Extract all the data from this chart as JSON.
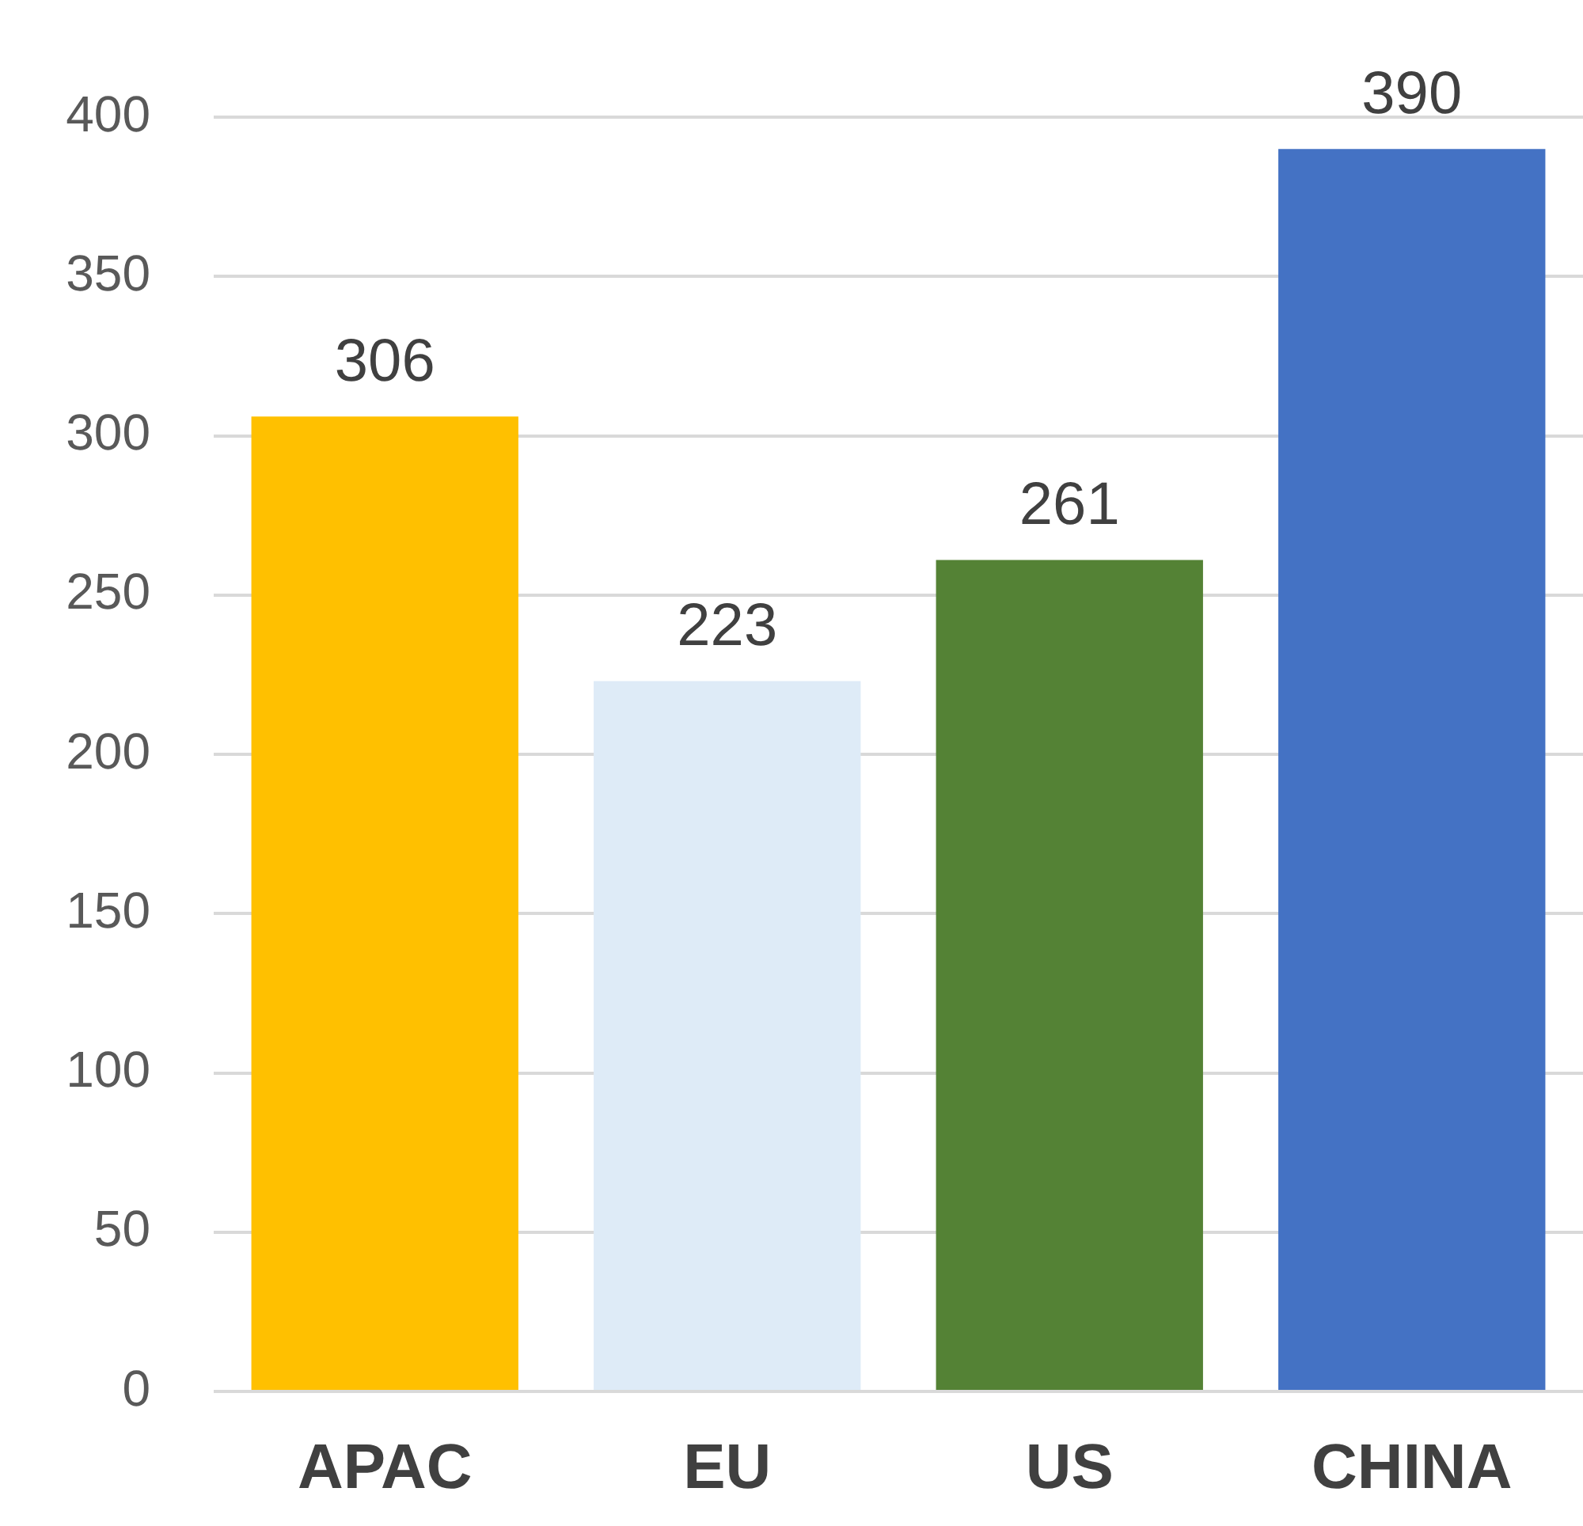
{
  "chart_data": {
    "type": "bar",
    "categories": [
      "APAC",
      "EU",
      "US",
      "CHINA"
    ],
    "values": [
      306,
      223,
      261,
      390
    ],
    "colors": [
      "#ffc000",
      "#deebf7",
      "#548235",
      "#4472c4"
    ],
    "ylim": [
      0,
      400
    ],
    "yticks": [
      0,
      50,
      100,
      150,
      200,
      250,
      300,
      350,
      400
    ],
    "grid": "y",
    "legend": false,
    "data_labels": true
  }
}
